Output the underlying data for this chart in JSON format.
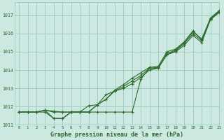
{
  "xlabel": "Graphe pression niveau de la mer (hPa)",
  "xlim": [
    -0.5,
    23
  ],
  "ylim": [
    1011.0,
    1017.7
  ],
  "yticks": [
    1011,
    1012,
    1013,
    1014,
    1015,
    1016,
    1017
  ],
  "xticks": [
    0,
    1,
    2,
    3,
    4,
    5,
    6,
    7,
    8,
    9,
    10,
    11,
    12,
    13,
    14,
    15,
    16,
    17,
    18,
    19,
    20,
    21,
    22,
    23
  ],
  "bg_color": "#cce8e0",
  "grid_color": "#9ecec5",
  "line_color": "#2d6a2d",
  "series": [
    [
      1011.7,
      1011.7,
      1011.7,
      1011.7,
      1011.35,
      1011.35,
      1011.7,
      1011.7,
      1011.7,
      1011.7,
      1011.7,
      1011.7,
      1011.7,
      1011.7,
      1013.5,
      1014.1,
      1014.1,
      1014.9,
      1015.1,
      1015.5,
      1016.1,
      1015.7,
      1016.8,
      1017.2
    ],
    [
      1011.7,
      1011.7,
      1011.7,
      1011.8,
      1011.7,
      1011.7,
      1011.7,
      1011.7,
      1011.7,
      1012.1,
      1012.4,
      1012.85,
      1013.1,
      1013.4,
      1013.7,
      1014.1,
      1014.15,
      1014.85,
      1015.05,
      1015.45,
      1016.0,
      1015.6,
      1016.8,
      1017.2
    ],
    [
      1011.7,
      1011.7,
      1011.7,
      1011.8,
      1011.35,
      1011.35,
      1011.7,
      1011.7,
      1011.7,
      1012.1,
      1012.65,
      1012.85,
      1013.0,
      1013.25,
      1013.6,
      1014.0,
      1014.1,
      1014.85,
      1015.0,
      1015.35,
      1015.9,
      1015.5,
      1016.75,
      1017.15
    ],
    [
      1011.7,
      1011.7,
      1011.7,
      1011.8,
      1011.75,
      1011.7,
      1011.7,
      1011.7,
      1012.05,
      1012.1,
      1012.4,
      1012.9,
      1013.2,
      1013.55,
      1013.85,
      1014.15,
      1014.2,
      1015.0,
      1015.15,
      1015.55,
      1016.15,
      1015.65,
      1016.85,
      1017.25
    ]
  ]
}
